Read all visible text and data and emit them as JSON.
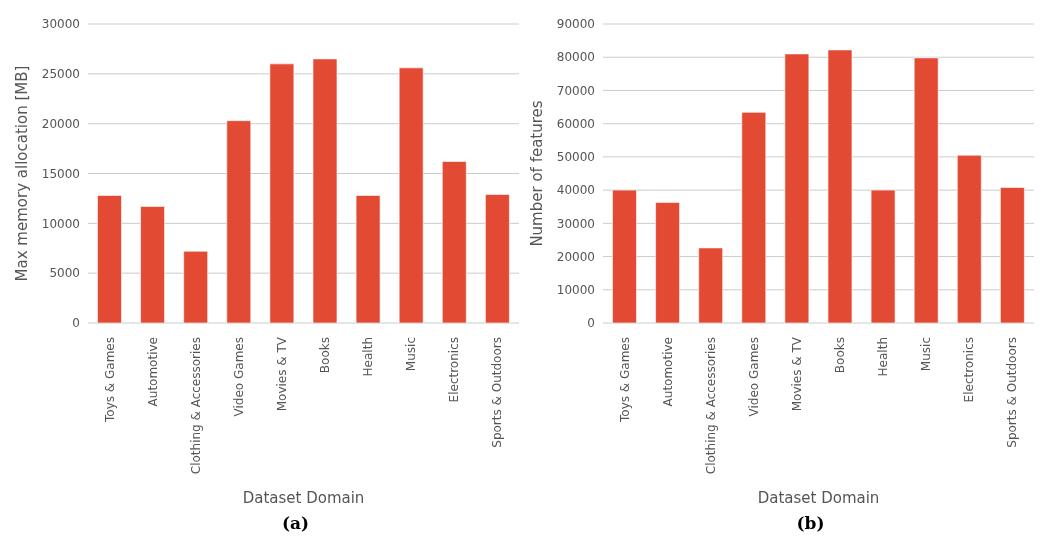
{
  "chart_data": [
    {
      "type": "bar",
      "categories": [
        "Toys & Games",
        "Automotive",
        "Clothing & Accessories",
        "Video Games",
        "Movies & TV",
        "Books",
        "Health",
        "Music",
        "Electronics",
        "Sports & Outdoors"
      ],
      "values": [
        12800,
        11700,
        7200,
        20300,
        26000,
        26500,
        12800,
        25600,
        16200,
        12900
      ],
      "color": "#e24a33",
      "xlabel": "Dataset Domain",
      "ylabel": "Max memory allocation [MB]",
      "ylim": [
        0,
        30000
      ],
      "yticks": [
        0,
        5000,
        10000,
        15000,
        20000,
        25000,
        30000
      ],
      "grid": "y",
      "annotations": [
        "(a)"
      ]
    },
    {
      "type": "bar",
      "categories": [
        "Toys & Games",
        "Automotive",
        "Clothing & Accessories",
        "Video Games",
        "Movies & TV",
        "Books",
        "Health",
        "Music",
        "Electronics",
        "Sports & Outdoors"
      ],
      "values": [
        40000,
        36300,
        22600,
        63400,
        81000,
        82200,
        40000,
        79800,
        50500,
        40800
      ],
      "color": "#e24a33",
      "xlabel": "Dataset Domain",
      "ylabel": "Number of features",
      "ylim": [
        0,
        90000
      ],
      "yticks": [
        0,
        10000,
        20000,
        30000,
        40000,
        50000,
        60000,
        70000,
        80000,
        90000
      ],
      "grid": "y",
      "annotations": [
        "(b)"
      ]
    }
  ]
}
